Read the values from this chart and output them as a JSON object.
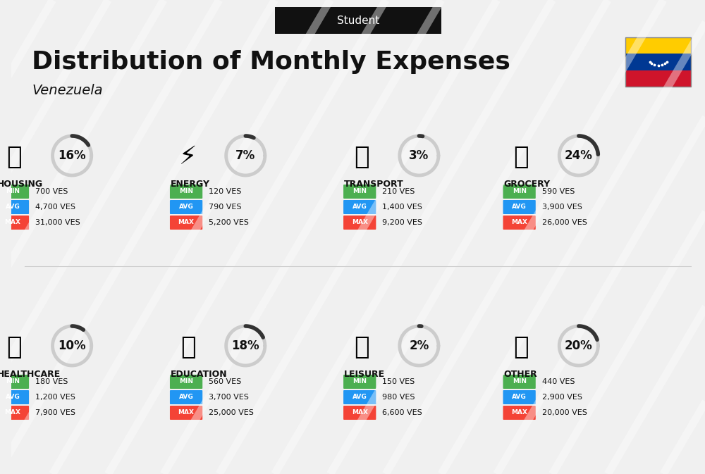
{
  "title": "Distribution of Monthly Expenses",
  "subtitle": "Venezuela",
  "header_label": "Student",
  "bg_color": "#f0f0f0",
  "categories": [
    {
      "name": "HOUSING",
      "pct": 16,
      "min": "700 VES",
      "avg": "4,700 VES",
      "max": "31,000 VES",
      "icon_color": "#2196F3",
      "row": 0,
      "col": 0
    },
    {
      "name": "ENERGY",
      "pct": 7,
      "min": "120 VES",
      "avg": "790 VES",
      "max": "5,200 VES",
      "icon_color": "#FFC107",
      "row": 0,
      "col": 1
    },
    {
      "name": "TRANSPORT",
      "pct": 3,
      "min": "210 VES",
      "avg": "1,400 VES",
      "max": "9,200 VES",
      "icon_color": "#4CAF50",
      "row": 0,
      "col": 2
    },
    {
      "name": "GROCERY",
      "pct": 24,
      "min": "590 VES",
      "avg": "3,900 VES",
      "max": "26,000 VES",
      "icon_color": "#FF9800",
      "row": 0,
      "col": 3
    },
    {
      "name": "HEALTHCARE",
      "pct": 10,
      "min": "180 VES",
      "avg": "1,200 VES",
      "max": "7,900 VES",
      "icon_color": "#E91E63",
      "row": 1,
      "col": 0
    },
    {
      "name": "EDUCATION",
      "pct": 18,
      "min": "560 VES",
      "avg": "3,700 VES",
      "max": "25,000 VES",
      "icon_color": "#3F51B5",
      "row": 1,
      "col": 1
    },
    {
      "name": "LEISURE",
      "pct": 2,
      "min": "150 VES",
      "avg": "980 VES",
      "max": "6,600 VES",
      "icon_color": "#FF5722",
      "row": 1,
      "col": 2
    },
    {
      "name": "OTHER",
      "pct": 20,
      "min": "440 VES",
      "avg": "2,900 VES",
      "max": "20,000 VES",
      "icon_color": "#795548",
      "row": 1,
      "col": 3
    }
  ],
  "min_color": "#4CAF50",
  "avg_color": "#2196F3",
  "max_color": "#F44336",
  "label_color": "#ffffff",
  "arc_color": "#333333",
  "arc_bg_color": "#cccccc",
  "venezuela_colors": [
    "#CF142B",
    "#003893",
    "#CF142B",
    "#FFCC00"
  ]
}
